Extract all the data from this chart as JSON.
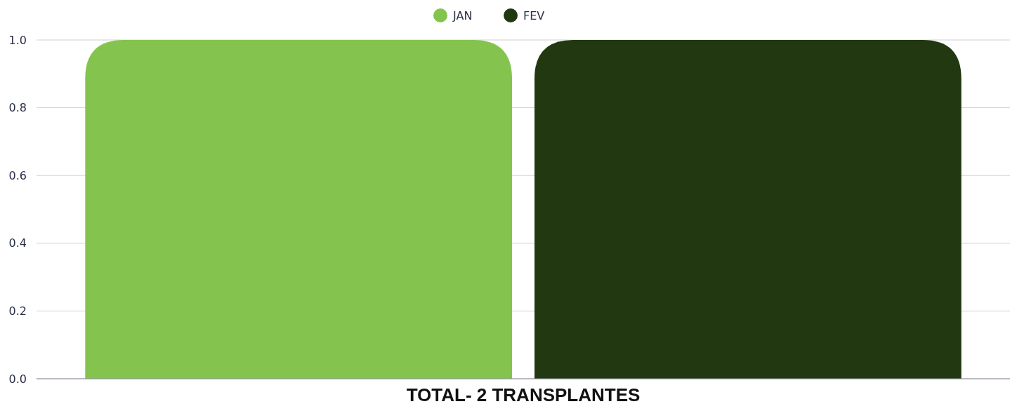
{
  "chart_data": {
    "type": "bar",
    "categories": [
      "TOTAL- 2 TRANSPLANTES"
    ],
    "series": [
      {
        "name": "JAN",
        "color": "#84c44e",
        "values": [
          1
        ]
      },
      {
        "name": "FEV",
        "color": "#223811",
        "values": [
          1
        ]
      }
    ],
    "ylim": [
      0,
      1
    ],
    "yticks": [
      {
        "value": 0,
        "label": "0.0"
      },
      {
        "value": 0.2,
        "label": "0.2"
      },
      {
        "value": 0.4,
        "label": "0.4"
      },
      {
        "value": 0.6,
        "label": "0.6"
      },
      {
        "value": 0.8,
        "label": "0.8"
      },
      {
        "value": 1,
        "label": "1.0"
      }
    ],
    "grid": "y",
    "legend": "top"
  }
}
